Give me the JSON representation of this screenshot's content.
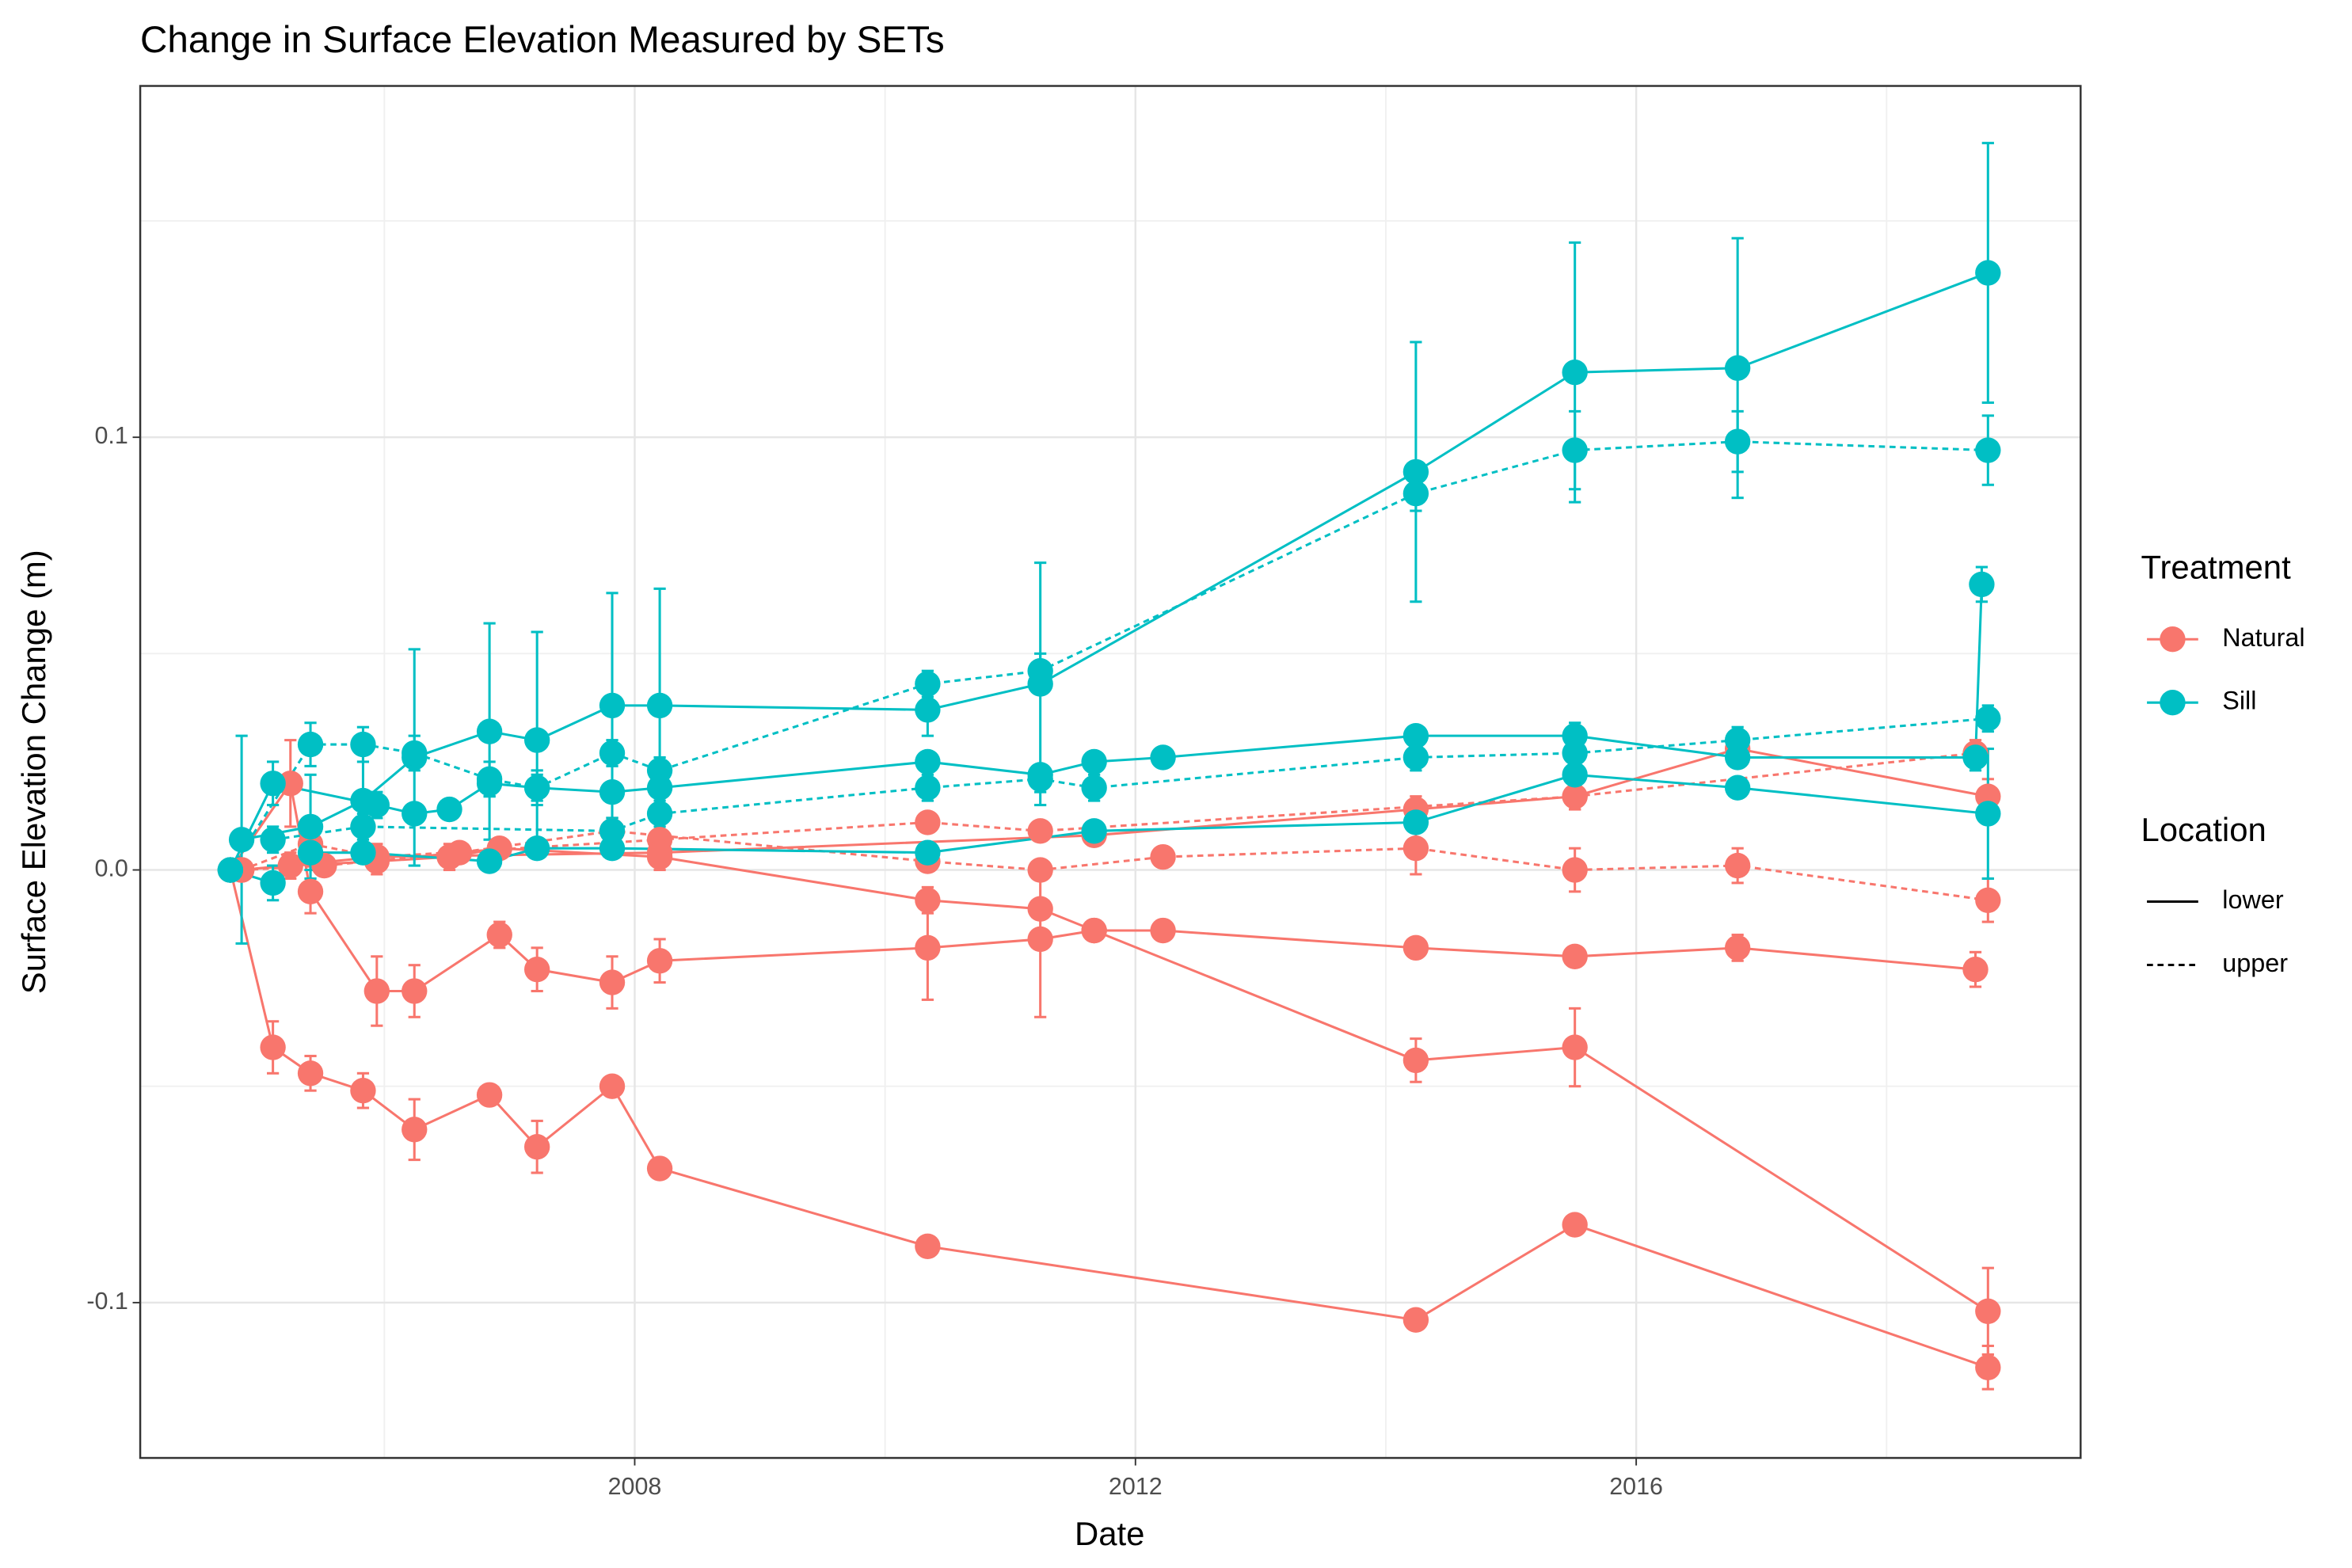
{
  "chart_data": {
    "type": "line",
    "title": "Change in Surface Elevation Measured by SETs",
    "x_label": "Date",
    "y_label": "Surface Elevation Change (m)",
    "xlim": [
      2004.05,
      2019.55
    ],
    "xticks": [
      2008,
      2012,
      2016
    ],
    "ylim": [
      -0.1359,
      0.1812
    ],
    "yticks": [
      {
        "value": -0.1,
        "label": "-0.1"
      },
      {
        "value": 0,
        "label": "0.0"
      },
      {
        "value": 0.1,
        "label": "0.1"
      }
    ],
    "grid": true,
    "legends": [
      {
        "title": "Treatment",
        "items": [
          {
            "label": "Natural",
            "color": "#f8766d"
          },
          {
            "label": "Sill",
            "color": "#00bfc4"
          }
        ]
      },
      {
        "title": "Location",
        "items": [
          {
            "label": "lower",
            "linestyle": "solid"
          },
          {
            "label": "upper",
            "linestyle": "dashed"
          }
        ]
      }
    ],
    "series": [
      {
        "color": "#f8766d",
        "linestyle": "solid",
        "x": [
          2004.77,
          2005.11,
          2005.41,
          2005.83,
          2006.24,
          2006.84,
          2007.22,
          2007.82,
          2008.2,
          2010.34,
          2014.24,
          2015.51,
          2018.81
        ],
        "values": [
          0,
          -0.041,
          -0.047,
          -0.051,
          -0.06,
          -0.052,
          -0.064,
          -0.05,
          -0.069,
          -0.087,
          -0.104,
          -0.082,
          -0.115
        ],
        "errors": [
          0,
          0.006,
          0.004,
          0.004,
          0.007,
          0.002,
          0.006,
          0.002,
          0.002,
          0,
          0,
          0,
          0.005
        ]
      },
      {
        "color": "#f8766d",
        "linestyle": "solid",
        "x": [
          2004.77,
          2005.25,
          2005.41,
          2005.94,
          2006.24,
          2006.92,
          2007.22,
          2007.82,
          2008.2,
          2010.34,
          2011.24,
          2011.67,
          2012.22,
          2014.24,
          2015.51,
          2016.81,
          2018.71
        ],
        "values": [
          0,
          0.02,
          -0.005,
          -0.028,
          -0.028,
          -0.015,
          -0.023,
          -0.026,
          -0.021,
          -0.018,
          -0.016,
          -0.014,
          -0.014,
          -0.018,
          -0.02,
          -0.018,
          -0.023
        ],
        "errors": [
          0,
          0.01,
          0.005,
          0.008,
          0.006,
          0.003,
          0.005,
          0.006,
          0.005,
          0.012,
          0.018,
          0.002,
          0.001,
          0.001,
          0.001,
          0.003,
          0.004
        ]
      },
      {
        "color": "#f8766d",
        "linestyle": "solid",
        "x": [
          2004.86,
          2005.25,
          2005.94,
          2006.52,
          2006.92,
          2008.2,
          2010.34,
          2011.24,
          2011.67,
          2014.24,
          2015.51,
          2018.81
        ],
        "values": [
          0,
          0.001,
          0.002,
          0.003,
          0.005,
          0.003,
          -0.007,
          -0.009,
          -0.014,
          -0.044,
          -0.041,
          -0.102
        ],
        "errors": [
          0,
          0.003,
          0.003,
          0.003,
          0.002,
          0.003,
          0.003,
          0.002,
          0.002,
          0.005,
          0.009,
          0.01
        ]
      },
      {
        "color": "#f8766d",
        "linestyle": "dashed",
        "x": [
          2004.86,
          2005.41,
          2005.94,
          2008.2,
          2010.34,
          2011.24,
          2015.51,
          2018.71
        ],
        "values": [
          0,
          0.006,
          0.003,
          0.007,
          0.011,
          0.009,
          0.017,
          0.027
        ],
        "errors": [
          0,
          0.003,
          0.003,
          0.002,
          0.002,
          0.002,
          0.003,
          0.003
        ]
      },
      {
        "color": "#f8766d",
        "linestyle": "dashed",
        "x": [
          2004.86,
          2005.52,
          2006.6,
          2007.82,
          2010.34,
          2011.24,
          2012.22,
          2014.24,
          2015.51,
          2016.81,
          2018.81
        ],
        "values": [
          0,
          0.001,
          0.004,
          0.009,
          0.002,
          0,
          0.003,
          0.005,
          0,
          0.001,
          -0.007
        ],
        "errors": [
          0,
          0.002,
          0.002,
          0.003,
          0.002,
          0.002,
          0.001,
          0.006,
          0.005,
          0.004,
          0.005
        ]
      },
      {
        "color": "#f8766d",
        "linestyle": "solid",
        "x": [
          2004.86,
          2005.94,
          2008.2,
          2011.67,
          2014.24,
          2015.51,
          2016.81,
          2018.81
        ],
        "values": [
          0,
          0.003,
          0.004,
          0.008,
          0.014,
          0.017,
          0.028,
          0.017
        ],
        "errors": [
          0,
          0.002,
          0.002,
          0.002,
          0.003,
          0.003,
          0.003,
          0.004
        ]
      },
      {
        "color": "#00bfc4",
        "linestyle": "solid",
        "x": [
          2004.86,
          2005.41,
          2005.83,
          2006.24,
          2006.84,
          2007.22,
          2007.82,
          2008.2,
          2010.34,
          2011.24,
          2014.24,
          2015.51,
          2016.81,
          2018.81
        ],
        "values": [
          0.007,
          0.01,
          0.016,
          0.026,
          0.032,
          0.03,
          0.038,
          0.038,
          0.037,
          0.043,
          0.092,
          0.115,
          0.116,
          0.138
        ],
        "errors": [
          0.024,
          0.012,
          0.012,
          0.025,
          0.025,
          0.025,
          0.026,
          0.027,
          0.006,
          0.028,
          0.03,
          0.03,
          0.03,
          0.03
        ]
      },
      {
        "color": "#00bfc4",
        "linestyle": "dashed",
        "x": [
          2004.77,
          2005.41,
          2005.83,
          2006.24,
          2006.84,
          2007.22,
          2007.82,
          2008.2,
          2010.34,
          2011.24,
          2014.24,
          2015.51,
          2016.81,
          2018.81
        ],
        "values": [
          0,
          0.029,
          0.029,
          0.027,
          0.021,
          0.019,
          0.027,
          0.023,
          0.043,
          0.046,
          0.087,
          0.097,
          0.099,
          0.097
        ],
        "errors": [
          0,
          0.005,
          0.004,
          0.004,
          0.004,
          0.004,
          0.003,
          0.003,
          0.003,
          0.004,
          0.004,
          0.009,
          0.007,
          0.008
        ]
      },
      {
        "color": "#00bfc4",
        "linestyle": "solid",
        "x": [
          2004.77,
          2005.11,
          2005.94,
          2006.24,
          2006.52,
          2006.84,
          2007.22,
          2007.82,
          2008.2,
          2010.34,
          2011.24,
          2011.67,
          2012.22,
          2014.24,
          2015.51,
          2016.81,
          2018.71,
          2018.76
        ],
        "values": [
          0,
          0.02,
          0.015,
          0.013,
          0.014,
          0.02,
          0.019,
          0.018,
          0.019,
          0.025,
          0.022,
          0.025,
          0.026,
          0.031,
          0.031,
          0.026,
          0.026,
          0.066
        ],
        "errors": [
          0,
          0.005,
          0.003,
          0.002,
          0.002,
          0.003,
          0.003,
          0.002,
          0.002,
          0.002,
          0.002,
          0.002,
          0.001,
          0.002,
          0.003,
          0.002,
          0.003,
          0.004
        ]
      },
      {
        "color": "#00bfc4",
        "linestyle": "dashed",
        "x": [
          2005.11,
          2005.83,
          2007.82,
          2008.2,
          2010.34,
          2011.24,
          2011.67,
          2014.24,
          2015.51,
          2016.81,
          2018.81
        ],
        "values": [
          0.007,
          0.01,
          0.009,
          0.013,
          0.019,
          0.021,
          0.019,
          0.026,
          0.027,
          0.03,
          0.035
        ],
        "errors": [
          0.003,
          0.003,
          0.003,
          0.003,
          0.003,
          0.003,
          0.003,
          0.003,
          0.003,
          0.003,
          0.003
        ]
      },
      {
        "color": "#00bfc4",
        "linestyle": "solid",
        "x": [
          2004.77,
          2005.11,
          2005.41,
          2005.83,
          2006.84,
          2007.22,
          2007.82,
          2010.34,
          2011.67,
          2014.24,
          2015.51,
          2016.81,
          2018.81
        ],
        "values": [
          0,
          -0.003,
          0.004,
          0.004,
          0.002,
          0.005,
          0.005,
          0.004,
          0.009,
          0.011,
          0.022,
          0.019,
          0.013
        ],
        "errors": [
          0,
          0.004,
          0.004,
          0.002,
          0.002,
          0.002,
          0.002,
          0.002,
          0.002,
          0.002,
          0.003,
          0.002,
          0.015
        ]
      }
    ]
  }
}
